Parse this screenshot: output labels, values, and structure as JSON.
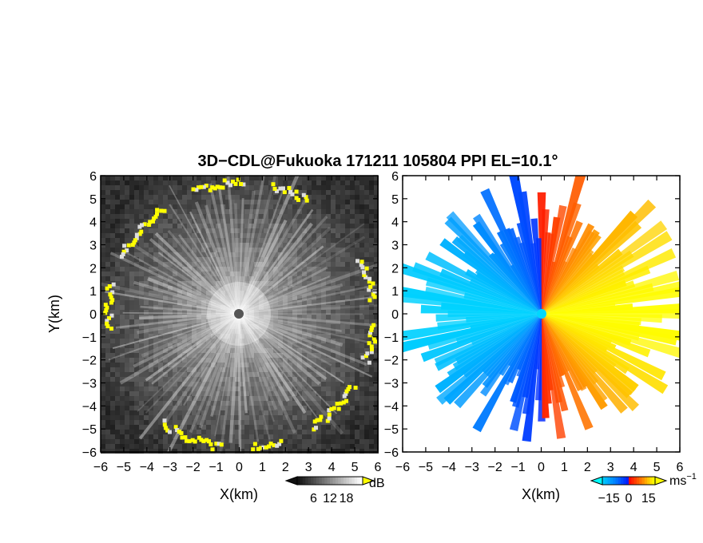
{
  "title": "3D−CDL@Fukuoka 171211 105804 PPI EL=10.1°",
  "chart_data": [
    {
      "type": "heatmap",
      "panel": "reflectivity",
      "xlabel": "X(km)",
      "ylabel": "Y(km)",
      "xlim": [
        -6,
        6
      ],
      "ylim": [
        -6,
        6
      ],
      "xticks": [
        "−6",
        "−5",
        "−4",
        "−3",
        "−2",
        "−1",
        "0",
        "1",
        "2",
        "3",
        "4",
        "5",
        "6"
      ],
      "yticks": [
        "6",
        "5",
        "4",
        "3",
        "2",
        "1",
        "0",
        "−1",
        "−2",
        "−3",
        "−4",
        "−5",
        "−6"
      ],
      "colorbar": {
        "unit": "dB",
        "ticks": [
          "6",
          "12",
          "18"
        ],
        "range": [
          0,
          24
        ]
      },
      "colors": {
        "low": "#1a1a1a",
        "high": "#ffffff",
        "clutter": "#ffff00"
      }
    },
    {
      "type": "heatmap",
      "panel": "doppler-velocity",
      "xlabel": "X(km)",
      "xlim": [
        -6,
        6
      ],
      "ylim": [
        -6,
        6
      ],
      "xticks": [
        "−6",
        "−5",
        "−4",
        "−3",
        "−2",
        "−1",
        "0",
        "1",
        "2",
        "3",
        "4",
        "5",
        "6"
      ],
      "colorbar": {
        "unit": "ms",
        "unit_exp": "−1",
        "ticks": [
          "−15",
          "0",
          "15"
        ],
        "range": [
          -20,
          20
        ]
      },
      "colors": {
        "neg": "#00c8ff",
        "mid_neg": "#0030ff",
        "mid_pos": "#ff2000",
        "pos": "#ffff00"
      }
    }
  ]
}
